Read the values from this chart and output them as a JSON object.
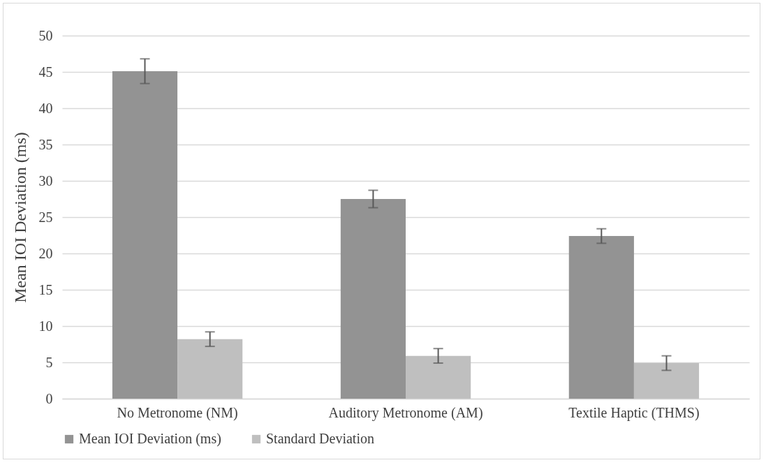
{
  "chart_data": {
    "type": "bar",
    "ylabel": "Mean IOI Deviation (ms)",
    "categories": [
      "No Metronome (NM)",
      "Auditory Metronome (AM)",
      "Textile Haptic (THMS)"
    ],
    "series": [
      {
        "name": "Mean IOI Deviation (ms)",
        "color": "#939393",
        "values": [
          45.1,
          27.5,
          22.4
        ],
        "errors": [
          1.7,
          1.2,
          1.0
        ]
      },
      {
        "name": "Standard Deviation",
        "color": "#bfbfbf",
        "values": [
          8.2,
          5.9,
          4.9
        ],
        "errors": [
          1.0,
          1.0,
          1.0
        ]
      }
    ],
    "ylim": [
      0,
      50
    ],
    "yticks": [
      0,
      5,
      10,
      15,
      20,
      25,
      30,
      35,
      40,
      45,
      50
    ],
    "grid": "y",
    "legend": "bottom"
  }
}
